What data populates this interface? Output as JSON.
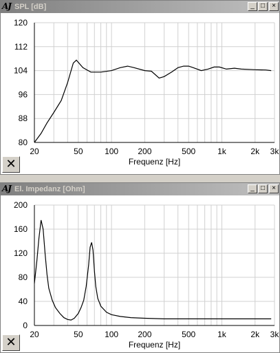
{
  "windows": [
    {
      "title": "SPL [dB]",
      "icon_label": "AJ",
      "minimize": "_",
      "maximize": "□",
      "close": "×",
      "clear_button": "✕",
      "chart_data": {
        "type": "line",
        "xlabel": "Frequenz [Hz]",
        "ylabel": "",
        "x_scale": "log",
        "xlim": [
          20,
          3000
        ],
        "ylim": [
          80,
          120
        ],
        "grid": true,
        "yticks": [
          80,
          88,
          96,
          104,
          112,
          120
        ],
        "xtick_labels": [
          {
            "value": 20,
            "label": "20"
          },
          {
            "value": 50,
            "label": "50"
          },
          {
            "value": 100,
            "label": "100"
          },
          {
            "value": 200,
            "label": "200"
          },
          {
            "value": 500,
            "label": "500"
          },
          {
            "value": 1000,
            "label": "1k"
          },
          {
            "value": 2000,
            "label": "2k"
          },
          {
            "value": 3000,
            "label": "3k"
          }
        ],
        "series": [
          {
            "x": [
              20,
              23,
              26,
              30,
              35,
              40,
              45,
              48,
              55,
              65,
              80,
              100,
              120,
              140,
              160,
              200,
              230,
              270,
              300,
              350,
              400,
              450,
              500,
              550,
              650,
              750,
              850,
              950,
              1100,
              1300,
              1500,
              2000,
              2500,
              2800
            ],
            "y": [
              80,
              83,
              86.5,
              90,
              94,
              100,
              106.5,
              107.5,
              105,
              103.5,
              103.5,
              104,
              105,
              105.5,
              105,
              104,
              103.8,
              101.5,
              102,
              103.5,
              105,
              105.5,
              105.5,
              105,
              104,
              104.5,
              105.2,
              105.2,
              104.5,
              104.8,
              104.5,
              104.3,
              104.2,
              104
            ]
          }
        ]
      }
    },
    {
      "title": "El. Impedanz [Ohm]",
      "icon_label": "AJ",
      "minimize": "_",
      "maximize": "□",
      "close": "×",
      "clear_button": "✕",
      "chart_data": {
        "type": "line",
        "xlabel": "Frequenz [Hz]",
        "ylabel": "",
        "x_scale": "log",
        "xlim": [
          20,
          3000
        ],
        "ylim": [
          0,
          200
        ],
        "grid": true,
        "yticks": [
          0,
          40,
          80,
          120,
          160,
          200
        ],
        "xtick_labels": [
          {
            "value": 20,
            "label": "20"
          },
          {
            "value": 50,
            "label": "50"
          },
          {
            "value": 100,
            "label": "100"
          },
          {
            "value": 200,
            "label": "200"
          },
          {
            "value": 500,
            "label": "500"
          },
          {
            "value": 1000,
            "label": "1k"
          },
          {
            "value": 2000,
            "label": "2k"
          },
          {
            "value": 3000,
            "label": "3k"
          }
        ],
        "series": [
          {
            "x": [
              20,
              21,
              22,
              23,
              24,
              25,
              26,
              27,
              29,
              31,
              34,
              37,
              40,
              43,
              46,
              50,
              53,
              56,
              59,
              62,
              64,
              66,
              68,
              70,
              72,
              75,
              80,
              90,
              100,
              120,
              150,
              200,
              300,
              500,
              1000,
              2000,
              2800
            ],
            "y": [
              70,
              105,
              145,
              175,
              160,
              120,
              85,
              62,
              42,
              30,
              20,
              13,
              10,
              9,
              12,
              20,
              30,
              42,
              65,
              100,
              130,
              138,
              125,
              90,
              65,
              45,
              32,
              22,
              18,
              15,
              13,
              12,
              11,
              11,
              11,
              11,
              11
            ]
          }
        ]
      }
    }
  ]
}
